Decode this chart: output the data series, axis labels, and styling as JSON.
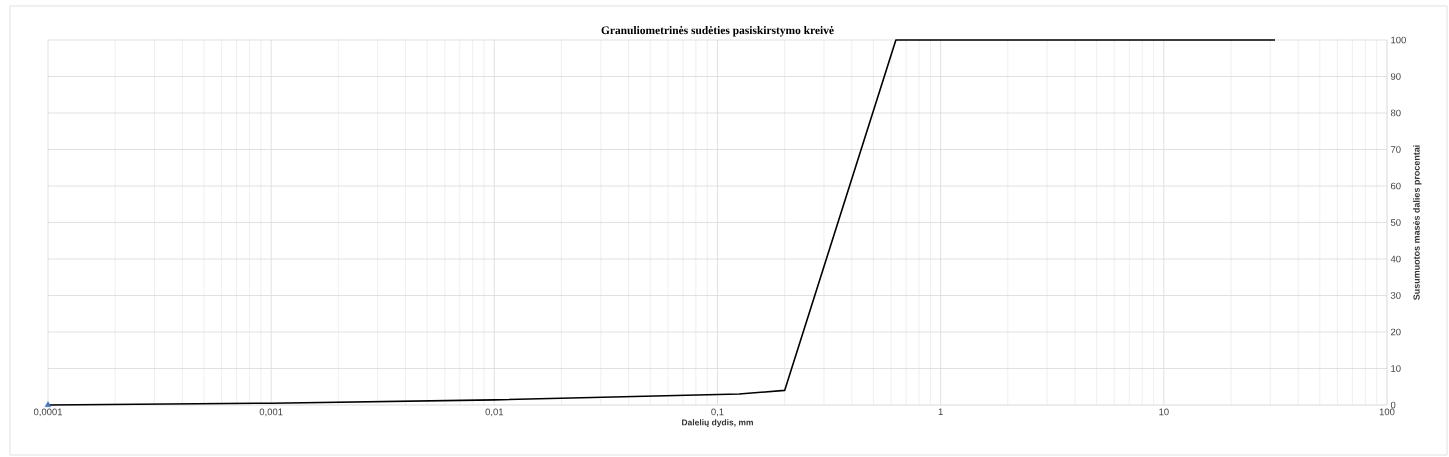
{
  "chart_data": {
    "type": "line",
    "title": "Granuliometrinės sudėties pasiskirstymo kreivė",
    "xlabel": "Dalelių dydis, mm",
    "ylabel": "Susumuotos masės dalies procentai",
    "log": "x",
    "grid": true,
    "line_style": "solid",
    "xlim": [
      0.0001,
      100
    ],
    "ylim": [
      0,
      100
    ],
    "xticks": [
      {
        "value": 0.0001,
        "label": "0,0001"
      },
      {
        "value": 0.001,
        "label": "0,001"
      },
      {
        "value": 0.01,
        "label": "0,01"
      },
      {
        "value": 0.1,
        "label": "0,1"
      },
      {
        "value": 1,
        "label": "1"
      },
      {
        "value": 10,
        "label": "10"
      },
      {
        "value": 100,
        "label": "100"
      }
    ],
    "yticks": [
      0,
      10,
      20,
      30,
      40,
      50,
      60,
      70,
      80,
      90,
      100
    ],
    "series": [
      {
        "color": "#000000",
        "marker": "none",
        "x": [
          0.0001,
          0.001,
          0.01,
          0.125,
          0.2,
          0.63,
          31.5
        ],
        "values": [
          0,
          0.5,
          1.4,
          3,
          4,
          100,
          100
        ]
      },
      {
        "type": "scatter",
        "color": "#4472c4",
        "marker": "triangle",
        "x": [
          0.0001
        ],
        "values": [
          0
        ]
      }
    ]
  }
}
